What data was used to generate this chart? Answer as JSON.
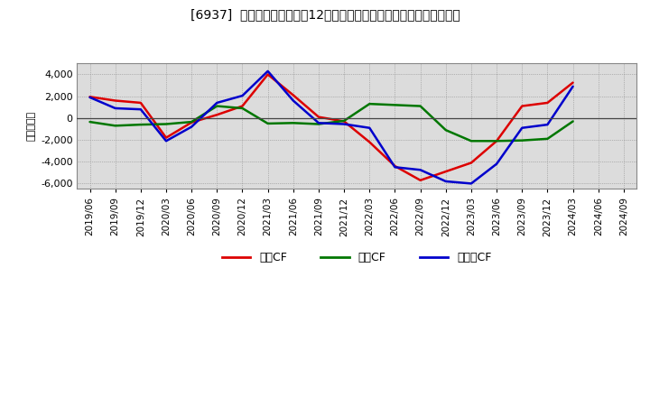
{
  "title": "[6937]  キャッシュフローの12か月移動合計の対前年同期増減額の推移",
  "ylabel": "（百万円）",
  "background_color": "#ffffff",
  "plot_background": "#dcdcdc",
  "ylim": [
    -6500,
    5000
  ],
  "yticks": [
    -6000,
    -4000,
    -2000,
    0,
    2000,
    4000
  ],
  "x_labels": [
    "2019/06",
    "2019/09",
    "2019/12",
    "2020/03",
    "2020/06",
    "2020/09",
    "2020/12",
    "2021/03",
    "2021/06",
    "2021/09",
    "2021/12",
    "2022/03",
    "2022/06",
    "2022/09",
    "2022/12",
    "2023/03",
    "2023/06",
    "2023/09",
    "2023/12",
    "2024/03",
    "2024/06",
    "2024/09"
  ],
  "営業CF_values": [
    1950,
    1600,
    1400,
    -1800,
    -400,
    300,
    1100,
    4000,
    2100,
    100,
    -300,
    -2200,
    -4400,
    -5700,
    -4900,
    -4100,
    -2100,
    1100,
    1400,
    3250,
    null,
    null
  ],
  "投資CF_values": [
    -350,
    -700,
    -600,
    -550,
    -350,
    1100,
    900,
    -500,
    -450,
    -550,
    -250,
    1300,
    1200,
    1100,
    -1100,
    -2100,
    -2100,
    -2050,
    -1900,
    -300,
    null,
    null
  ],
  "フリーCF_values": [
    1900,
    900,
    800,
    -2100,
    -800,
    1400,
    2050,
    4300,
    1600,
    -450,
    -550,
    -900,
    -4500,
    -4750,
    -5800,
    -6000,
    -4200,
    -900,
    -600,
    2900,
    null,
    null
  ],
  "series_colors": {
    "営業CF": "#dd0000",
    "投資CF": "#007700",
    "フリーCF": "#0000cc"
  },
  "legend_labels": [
    "営業CF",
    "投資CF",
    "フリーCF"
  ]
}
